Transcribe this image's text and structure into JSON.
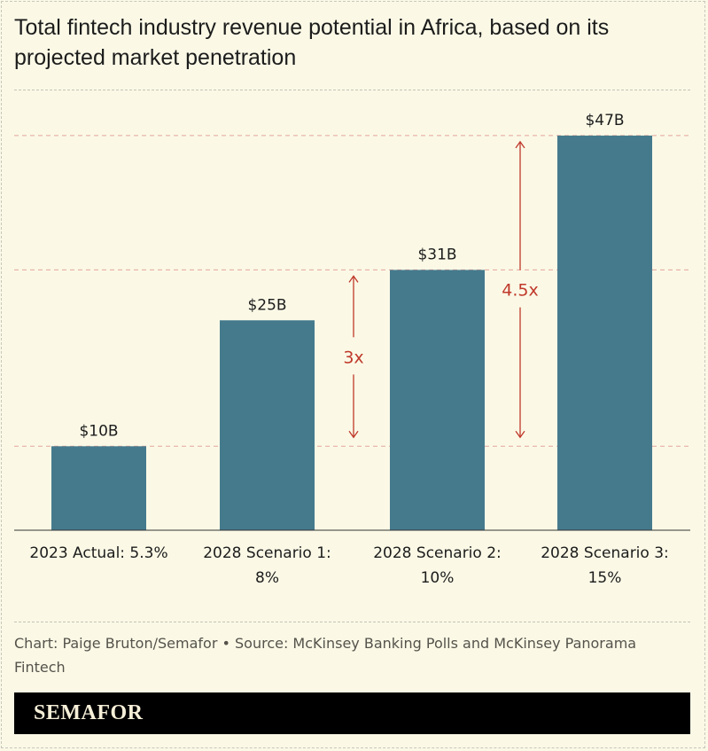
{
  "title": "Total fintech industry revenue potential in Africa, based on its projected market penetration",
  "chart_data": {
    "type": "bar",
    "categories": [
      [
        "2023 Actual: 5.3%"
      ],
      [
        "2028 Scenario 1:",
        "8%"
      ],
      [
        "2028 Scenario 2:",
        "10%"
      ],
      [
        "2028 Scenario 3:",
        "15%"
      ]
    ],
    "values": [
      10,
      25,
      31,
      47
    ],
    "data_labels": [
      "$10B",
      "$25B",
      "$31B",
      "$47B"
    ],
    "unit": "billion USD",
    "ylim": [
      0,
      50
    ],
    "reference_lines": [
      10,
      31,
      47
    ],
    "annotations": [
      {
        "label": "3x",
        "from": 10,
        "to": 31
      },
      {
        "label": "4.5x",
        "from": 10,
        "to": 47
      }
    ],
    "colors": {
      "bar": "#457a8d",
      "annotation": "#c0392b",
      "background": "#fbf9e6"
    }
  },
  "credit": "Chart: Paige Bruton/Semafor • Source: McKinsey Banking Polls and McKinsey Panorama Fintech",
  "brand": "SEMAFOR"
}
